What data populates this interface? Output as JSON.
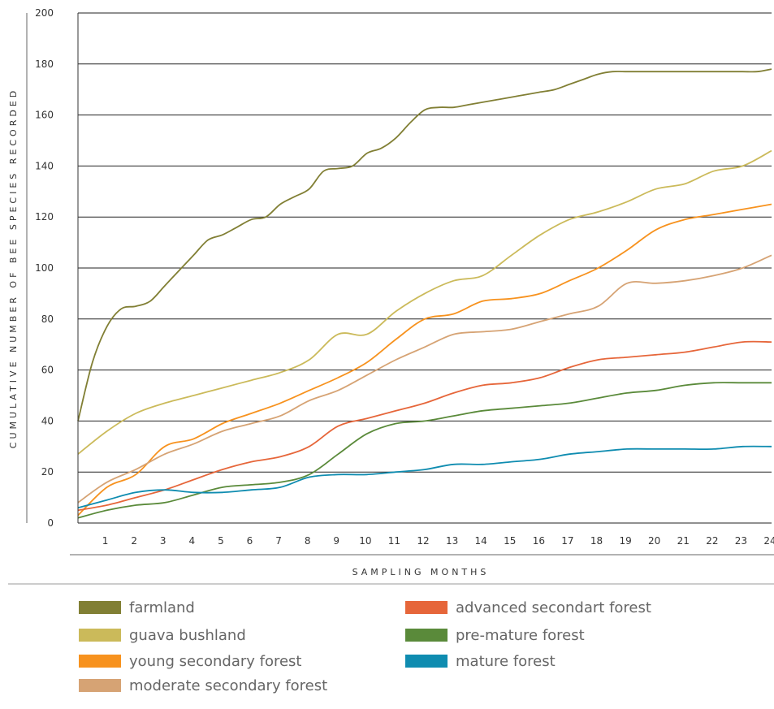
{
  "chart_data": {
    "type": "line",
    "title": "",
    "xlabel": "SAMPLING MONTHS",
    "ylabel": "CUMULATIVE NUMBER OF BEE SPECIES RECORDED",
    "xlim": [
      0,
      24
    ],
    "ylim": [
      0,
      200
    ],
    "x_ticks": [
      "1",
      "2",
      "3",
      "4",
      "5",
      "6",
      "7",
      "8",
      "9",
      "10",
      "11",
      "12",
      "13",
      "14",
      "15",
      "16",
      "17",
      "18",
      "19",
      "20",
      "21",
      "22",
      "23",
      "24"
    ],
    "y_ticks": [
      0,
      20,
      40,
      60,
      80,
      100,
      120,
      140,
      160,
      180,
      200
    ],
    "grid": true,
    "legend_position": "bottom",
    "series": [
      {
        "name": "farmland",
        "color": "#817f34",
        "x": [
          0,
          0.5,
          1,
          1.5,
          2,
          2.5,
          3,
          3.5,
          4,
          4.5,
          5,
          5.5,
          6,
          6.5,
          7,
          7.5,
          8,
          8.5,
          9,
          9.5,
          10,
          10.5,
          11,
          11.5,
          12,
          12.5,
          13,
          13.5,
          14,
          14.5,
          15,
          15.5,
          16,
          16.5,
          17,
          17.5,
          18,
          18.5,
          19,
          19.5,
          20,
          20.5,
          21,
          21.5,
          22,
          22.5,
          23,
          23.5,
          24
        ],
        "y": [
          40,
          63,
          77,
          84,
          85,
          87,
          93,
          99,
          105,
          111,
          113,
          116,
          119,
          120,
          125,
          128,
          131,
          138,
          139,
          140,
          145,
          147,
          151,
          157,
          162,
          163,
          163,
          164,
          165,
          166,
          167,
          168,
          169,
          170,
          172,
          174,
          176,
          177,
          177,
          177,
          177,
          177,
          177,
          177,
          177,
          177,
          177,
          177,
          178
        ]
      },
      {
        "name": "guava bushland",
        "color": "#cbba5a",
        "x": [
          0,
          1,
          2,
          3,
          4,
          5,
          6,
          7,
          8,
          9,
          10,
          11,
          12,
          13,
          14,
          15,
          16,
          17,
          18,
          19,
          20,
          21,
          22,
          23,
          24
        ],
        "y": [
          27,
          36,
          43,
          47,
          50,
          53,
          56,
          59,
          64,
          74,
          74,
          83,
          90,
          95,
          97,
          105,
          113,
          119,
          122,
          126,
          131,
          133,
          138,
          140,
          146
        ]
      },
      {
        "name": "young secondary forest",
        "color": "#f7921e",
        "x": [
          0,
          1,
          2,
          3,
          4,
          5,
          6,
          7,
          8,
          9,
          10,
          11,
          12,
          13,
          14,
          15,
          16,
          17,
          18,
          19,
          20,
          21,
          22,
          23,
          24
        ],
        "y": [
          3,
          14,
          19,
          30,
          33,
          39,
          43,
          47,
          52,
          57,
          63,
          72,
          80,
          82,
          87,
          88,
          90,
          95,
          100,
          107,
          115,
          119,
          121,
          123,
          125
        ]
      },
      {
        "name": "moderate secondary forest",
        "color": "#d6a374",
        "x": [
          0,
          1,
          2,
          3,
          4,
          5,
          6,
          7,
          8,
          9,
          10,
          11,
          12,
          13,
          14,
          15,
          16,
          17,
          18,
          19,
          20,
          21,
          22,
          23,
          24
        ],
        "y": [
          8,
          16,
          21,
          27,
          31,
          36,
          39,
          42,
          48,
          52,
          58,
          64,
          69,
          74,
          75,
          76,
          79,
          82,
          85,
          94,
          94,
          95,
          97,
          100,
          105
        ]
      },
      {
        "name": "advanced secondart forest",
        "color": "#e6663a",
        "x": [
          0,
          1,
          2,
          3,
          4,
          5,
          6,
          7,
          8,
          9,
          10,
          11,
          12,
          13,
          14,
          15,
          16,
          17,
          18,
          19,
          20,
          21,
          22,
          23,
          24
        ],
        "y": [
          5,
          7,
          10,
          13,
          17,
          21,
          24,
          26,
          30,
          38,
          41,
          44,
          47,
          51,
          54,
          55,
          57,
          61,
          64,
          65,
          66,
          67,
          69,
          71,
          71
        ]
      },
      {
        "name": "pre-mature forest",
        "color": "#5a8a3a",
        "x": [
          0,
          1,
          2,
          3,
          4,
          5,
          6,
          7,
          8,
          9,
          10,
          11,
          12,
          13,
          14,
          15,
          16,
          17,
          18,
          19,
          20,
          21,
          22,
          23,
          24
        ],
        "y": [
          2,
          5,
          7,
          8,
          11,
          14,
          15,
          16,
          19,
          27,
          35,
          39,
          40,
          42,
          44,
          45,
          46,
          47,
          49,
          51,
          52,
          54,
          55,
          55,
          55
        ]
      },
      {
        "name": "mature forest",
        "color": "#0f8cb0",
        "x": [
          0,
          1,
          2,
          3,
          4,
          5,
          6,
          7,
          8,
          9,
          10,
          11,
          12,
          13,
          14,
          15,
          16,
          17,
          18,
          19,
          20,
          21,
          22,
          23,
          24
        ],
        "y": [
          6,
          9,
          12,
          13,
          12,
          12,
          13,
          14,
          18,
          19,
          19,
          20,
          21,
          23,
          23,
          24,
          25,
          27,
          28,
          29,
          29,
          29,
          29,
          30,
          30
        ]
      }
    ]
  }
}
